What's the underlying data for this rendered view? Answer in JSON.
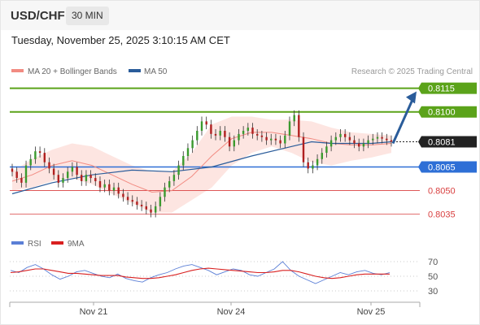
{
  "header": {
    "symbol": "USD/CHF",
    "timeframe": "30 MIN",
    "datetime": "Tuesday, November 25, 2025 3:10:15 AM CET"
  },
  "legend": {
    "items": [
      {
        "label": "MA 20 + Bollinger Bands",
        "color": "#f28b82"
      },
      {
        "label": "MA 50",
        "color": "#2a5c9a"
      }
    ],
    "credit": "Research © 2025 Trading Central"
  },
  "colors": {
    "target_line": "#5ba31a",
    "current_price": "#222222",
    "pivot": "#2e6fd6",
    "support": "#d94040",
    "rsi": "#5b7fd6",
    "rsi_ma": "#d92020",
    "bollinger_fill": "#fde0dc",
    "candle_up": "#3a9a2e",
    "candle_down": "#b02020",
    "arrow": "#2a5c9a"
  },
  "chart_data": {
    "type": "line",
    "title": "USD/CHF",
    "timeframe": "30 MIN",
    "y_range": [
      0.8025,
      0.812
    ],
    "x_labels": [
      "Nov 21",
      "Nov 24",
      "Nov 25"
    ],
    "price_levels": [
      {
        "label": "0.8115",
        "value": 0.8115,
        "kind": "target"
      },
      {
        "label": "0.8100",
        "value": 0.81,
        "kind": "target"
      },
      {
        "label": "0.8081",
        "value": 0.8081,
        "kind": "current"
      },
      {
        "label": "0.8065",
        "value": 0.8065,
        "kind": "pivot"
      },
      {
        "label": "0.8050",
        "value": 0.805,
        "kind": "support"
      },
      {
        "label": "0.8035",
        "value": 0.8035,
        "kind": "support"
      }
    ],
    "forecast_arrow": {
      "from": 0.808,
      "to": 0.8113
    },
    "series": [
      {
        "name": "MA 20 + Bollinger Bands",
        "points": [
          [
            0,
            0.8056
          ],
          [
            10,
            0.806
          ],
          [
            20,
            0.8066
          ],
          [
            30,
            0.8069
          ],
          [
            40,
            0.8066
          ],
          [
            50,
            0.806
          ],
          [
            60,
            0.8054
          ],
          [
            70,
            0.8049
          ],
          [
            80,
            0.805
          ],
          [
            90,
            0.8059
          ],
          [
            100,
            0.8072
          ],
          [
            110,
            0.8083
          ],
          [
            120,
            0.8087
          ],
          [
            130,
            0.8087
          ],
          [
            140,
            0.8085
          ],
          [
            150,
            0.8083
          ],
          [
            160,
            0.808
          ],
          [
            170,
            0.8079
          ],
          [
            180,
            0.8079
          ],
          [
            190,
            0.808
          ]
        ]
      },
      {
        "name": "MA 50",
        "points": [
          [
            0,
            0.8048
          ],
          [
            20,
            0.8055
          ],
          [
            40,
            0.806
          ],
          [
            60,
            0.8063
          ],
          [
            80,
            0.8062
          ],
          [
            100,
            0.8065
          ],
          [
            120,
            0.8072
          ],
          [
            140,
            0.8078
          ],
          [
            150,
            0.8081
          ],
          [
            160,
            0.808
          ],
          [
            180,
            0.808
          ],
          [
            190,
            0.8081
          ]
        ]
      }
    ],
    "bollinger": {
      "upper": [
        [
          0,
          0.8062
        ],
        [
          10,
          0.807
        ],
        [
          20,
          0.8076
        ],
        [
          30,
          0.808
        ],
        [
          40,
          0.8078
        ],
        [
          50,
          0.8072
        ],
        [
          60,
          0.8066
        ],
        [
          70,
          0.8062
        ],
        [
          80,
          0.8062
        ],
        [
          90,
          0.8074
        ],
        [
          100,
          0.8092
        ],
        [
          110,
          0.8097
        ],
        [
          120,
          0.8097
        ],
        [
          130,
          0.8095
        ],
        [
          140,
          0.8095
        ],
        [
          150,
          0.8094
        ],
        [
          160,
          0.809
        ],
        [
          170,
          0.8087
        ],
        [
          180,
          0.8086
        ],
        [
          190,
          0.8085
        ]
      ],
      "lower": [
        [
          0,
          0.805
        ],
        [
          10,
          0.8052
        ],
        [
          20,
          0.8056
        ],
        [
          30,
          0.8058
        ],
        [
          40,
          0.8054
        ],
        [
          50,
          0.8048
        ],
        [
          60,
          0.8042
        ],
        [
          70,
          0.8036
        ],
        [
          80,
          0.8036
        ],
        [
          90,
          0.8044
        ],
        [
          100,
          0.8052
        ],
        [
          110,
          0.8066
        ],
        [
          120,
          0.8074
        ],
        [
          130,
          0.8078
        ],
        [
          140,
          0.8074
        ],
        [
          150,
          0.8068
        ],
        [
          160,
          0.8066
        ],
        [
          170,
          0.8069
        ],
        [
          180,
          0.8071
        ],
        [
          190,
          0.8074
        ]
      ]
    },
    "candles_close": [
      0.8062,
      0.8058,
      0.8055,
      0.8066,
      0.807,
      0.8075,
      0.8074,
      0.8068,
      0.8064,
      0.806,
      0.8055,
      0.8058,
      0.8062,
      0.8065,
      0.806,
      0.8056,
      0.806,
      0.8058,
      0.8056,
      0.8052,
      0.8054,
      0.805,
      0.8052,
      0.8048,
      0.8046,
      0.8044,
      0.8043,
      0.8041,
      0.804,
      0.8038,
      0.8036,
      0.804,
      0.8046,
      0.8052,
      0.8056,
      0.806,
      0.8066,
      0.8072,
      0.8077,
      0.8082,
      0.8088,
      0.8094,
      0.8092,
      0.8086,
      0.8085,
      0.8088,
      0.8084,
      0.8078,
      0.8082,
      0.8086,
      0.8088,
      0.809,
      0.8086,
      0.8085,
      0.8084,
      0.8082,
      0.8083,
      0.8082,
      0.808,
      0.8085,
      0.8094,
      0.8098,
      0.8084,
      0.8068,
      0.8064,
      0.8066,
      0.807,
      0.8074,
      0.8078,
      0.8082,
      0.8084,
      0.8086,
      0.8084,
      0.8082,
      0.808,
      0.8078,
      0.808,
      0.8082,
      0.8083,
      0.8084,
      0.8083,
      0.8082,
      0.8081
    ],
    "rsi": {
      "levels": [
        70,
        50,
        30
      ],
      "legend": [
        {
          "label": "RSI",
          "color": "#5b7fd6"
        },
        {
          "label": "9MA",
          "color": "#d92020"
        }
      ],
      "values": [
        58,
        55,
        62,
        66,
        60,
        52,
        46,
        50,
        56,
        58,
        54,
        50,
        48,
        53,
        47,
        44,
        42,
        48,
        52,
        55,
        60,
        64,
        66,
        62,
        58,
        52,
        56,
        60,
        58,
        52,
        50,
        55,
        60,
        70,
        58,
        50,
        45,
        40,
        45,
        50,
        55,
        52,
        56,
        58,
        54,
        52,
        55
      ],
      "ma": [
        55,
        56,
        58,
        60,
        60,
        58,
        56,
        54,
        54,
        53,
        52,
        51,
        51,
        51,
        49,
        48,
        47,
        47,
        48,
        50,
        52,
        55,
        58,
        60,
        61,
        60,
        59,
        58,
        57,
        56,
        55,
        55,
        56,
        58,
        58,
        56,
        53,
        50,
        48,
        47,
        48,
        50,
        52,
        53,
        53,
        53,
        53
      ]
    }
  }
}
